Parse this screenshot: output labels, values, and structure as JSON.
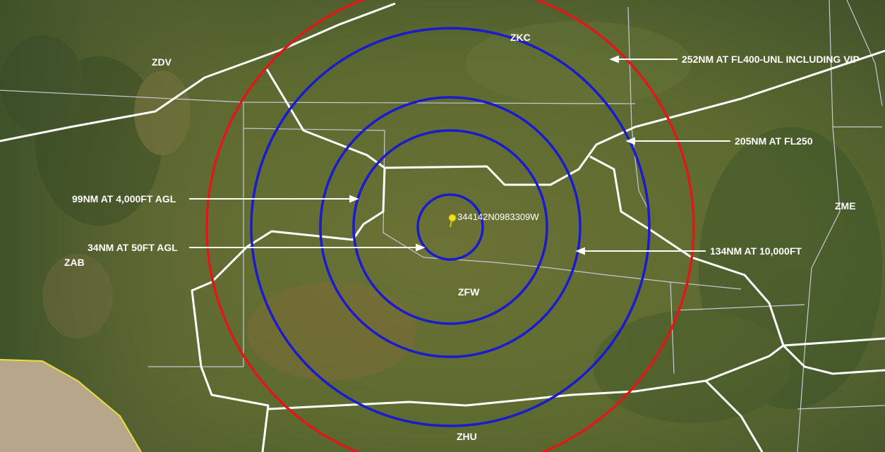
{
  "center": {
    "coord_label": "344142N0983309W"
  },
  "artccs": {
    "zdv": "ZDV",
    "zkc": "ZKC",
    "zab": "ZAB",
    "zfw": "ZFW",
    "zme": "ZME",
    "zhu": "ZHU"
  },
  "rings": [
    {
      "label": "34NM AT 50FT AGL",
      "radius_nm": 34,
      "color": "#1a1ad0"
    },
    {
      "label": "99NM AT 4,000FT AGL",
      "radius_nm": 99,
      "color": "#1a1ad0"
    },
    {
      "label": "134NM AT 10,000FT",
      "radius_nm": 134,
      "color": "#1a1ad0"
    },
    {
      "label": "205NM AT FL250",
      "radius_nm": 205,
      "color": "#1a1ad0"
    },
    {
      "label": "252NM AT FL400-UNL INCLUDING VIP",
      "radius_nm": 252,
      "color": "#e01818"
    }
  ],
  "colors": {
    "boundary": "#ffffff",
    "state_line": "#c8c8d8",
    "pin": "#f2e020",
    "border_yellow": "#e8e040",
    "terrain": "#5d6a32"
  }
}
